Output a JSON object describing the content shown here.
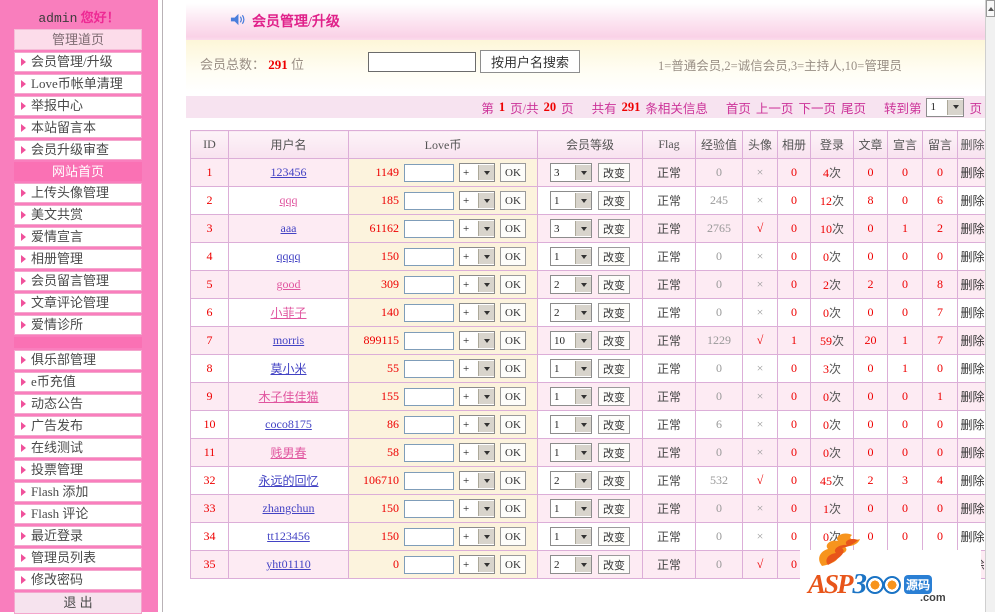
{
  "sidebar": {
    "greeting_user": "admin",
    "greeting_text": "您好！",
    "menu": [
      {
        "type": "header",
        "label": "管理道页"
      },
      {
        "type": "item",
        "label": "会员管理/升级"
      },
      {
        "type": "item",
        "label": "Love币帐单清理"
      },
      {
        "type": "item",
        "label": "举报中心"
      },
      {
        "type": "item",
        "label": "本站留言本"
      },
      {
        "type": "item",
        "label": "会员升级审查"
      },
      {
        "type": "header2",
        "label": "网站首页"
      },
      {
        "type": "item",
        "label": "上传头像管理"
      },
      {
        "type": "item",
        "label": "美文共赏"
      },
      {
        "type": "item",
        "label": "爱情宣言"
      },
      {
        "type": "item",
        "label": "相册管理"
      },
      {
        "type": "item",
        "label": "会员留言管理"
      },
      {
        "type": "item",
        "label": "文章评论管理"
      },
      {
        "type": "item",
        "label": "爱情诊所"
      },
      {
        "type": "blank",
        "label": ""
      },
      {
        "type": "item",
        "label": "俱乐部管理"
      },
      {
        "type": "item",
        "label": "e币充值"
      },
      {
        "type": "item",
        "label": "动态公告"
      },
      {
        "type": "item",
        "label": "广告发布"
      },
      {
        "type": "item",
        "label": "在线测试"
      },
      {
        "type": "item",
        "label": "投票管理"
      },
      {
        "type": "item",
        "label": "Flash 添加"
      },
      {
        "type": "item",
        "label": "Flash 评论"
      },
      {
        "type": "item",
        "label": "最近登录"
      },
      {
        "type": "item",
        "label": "管理员列表"
      },
      {
        "type": "item",
        "label": "修改密码"
      },
      {
        "type": "exit",
        "label": "退  出"
      }
    ]
  },
  "header": {
    "title": "会员管理/升级"
  },
  "search": {
    "total_label": "会员总数：",
    "total": "291",
    "unit": "位",
    "input_value": "",
    "button": "按用户名搜索",
    "legend": "1=普通会员,2=诚信会员,3=主持人,10=管理员"
  },
  "pagination": {
    "l1": "第",
    "page": "1",
    "l2": "页/共",
    "pages": "20",
    "l3": "页",
    "l4": "共有",
    "total": "291",
    "l5": "条相关信息",
    "first": "首页",
    "prev": "上一页",
    "next": "下一页",
    "last": "尾页",
    "l6": "转到第",
    "goto_page": "1",
    "l7": "页"
  },
  "table": {
    "headers": [
      "ID",
      "用户名",
      "Love币",
      "会员等级",
      "Flag",
      "经验值",
      "头像",
      "相册",
      "登录",
      "文章",
      "宣言",
      "留言",
      "删除"
    ],
    "plus_label": "+",
    "ok_label": "OK",
    "change_label": "改变",
    "delete_label": "删除",
    "login_suffix": "次",
    "rows": [
      {
        "id": "1",
        "user": "123456",
        "visited": false,
        "coin": "1149",
        "level": "3",
        "flag": "正常",
        "exp": "0",
        "avatar": "×",
        "album": "0",
        "login": "4",
        "articles": "0",
        "decl": "0",
        "msgs": "0"
      },
      {
        "id": "2",
        "user": "qqq",
        "visited": true,
        "coin": "185",
        "level": "1",
        "flag": "正常",
        "exp": "245",
        "avatar": "×",
        "album": "0",
        "login": "12",
        "articles": "8",
        "decl": "0",
        "msgs": "6"
      },
      {
        "id": "3",
        "user": "aaa",
        "visited": false,
        "coin": "61162",
        "level": "3",
        "flag": "正常",
        "exp": "2765",
        "avatar": "√",
        "album": "0",
        "login": "10",
        "articles": "0",
        "decl": "1",
        "msgs": "2"
      },
      {
        "id": "4",
        "user": "qqqq",
        "visited": false,
        "coin": "150",
        "level": "1",
        "flag": "正常",
        "exp": "0",
        "avatar": "×",
        "album": "0",
        "login": "0",
        "articles": "0",
        "decl": "0",
        "msgs": "0"
      },
      {
        "id": "5",
        "user": "good",
        "visited": true,
        "coin": "309",
        "level": "2",
        "flag": "正常",
        "exp": "0",
        "avatar": "×",
        "album": "0",
        "login": "2",
        "articles": "2",
        "decl": "0",
        "msgs": "8"
      },
      {
        "id": "6",
        "user": "小菲子",
        "visited": true,
        "coin": "140",
        "level": "2",
        "flag": "正常",
        "exp": "0",
        "avatar": "×",
        "album": "0",
        "login": "0",
        "articles": "0",
        "decl": "0",
        "msgs": "7"
      },
      {
        "id": "7",
        "user": "morris",
        "visited": false,
        "coin": "899115",
        "level": "10",
        "flag": "正常",
        "exp": "1229",
        "avatar": "√",
        "album": "1",
        "login": "59",
        "articles": "20",
        "decl": "1",
        "msgs": "7"
      },
      {
        "id": "8",
        "user": "莫小米",
        "visited": false,
        "coin": "55",
        "level": "1",
        "flag": "正常",
        "exp": "0",
        "avatar": "×",
        "album": "0",
        "login": "3",
        "articles": "0",
        "decl": "1",
        "msgs": "0"
      },
      {
        "id": "9",
        "user": "木子佳佳猫",
        "visited": true,
        "coin": "155",
        "level": "1",
        "flag": "正常",
        "exp": "0",
        "avatar": "×",
        "album": "0",
        "login": "0",
        "articles": "0",
        "decl": "0",
        "msgs": "1"
      },
      {
        "id": "10",
        "user": "coco8175",
        "visited": false,
        "coin": "86",
        "level": "1",
        "flag": "正常",
        "exp": "6",
        "avatar": "×",
        "album": "0",
        "login": "0",
        "articles": "0",
        "decl": "0",
        "msgs": "0"
      },
      {
        "id": "11",
        "user": "贱男春",
        "visited": true,
        "coin": "58",
        "level": "1",
        "flag": "正常",
        "exp": "0",
        "avatar": "×",
        "album": "0",
        "login": "0",
        "articles": "0",
        "decl": "0",
        "msgs": "0"
      },
      {
        "id": "32",
        "user": "永远的回忆",
        "visited": false,
        "coin": "106710",
        "level": "2",
        "flag": "正常",
        "exp": "532",
        "avatar": "√",
        "album": "0",
        "login": "45",
        "articles": "2",
        "decl": "3",
        "msgs": "4"
      },
      {
        "id": "33",
        "user": "zhangchun",
        "visited": false,
        "coin": "150",
        "level": "1",
        "flag": "正常",
        "exp": "0",
        "avatar": "×",
        "album": "0",
        "login": "1",
        "articles": "0",
        "decl": "0",
        "msgs": "0"
      },
      {
        "id": "34",
        "user": "tt123456",
        "visited": false,
        "coin": "150",
        "level": "1",
        "flag": "正常",
        "exp": "0",
        "avatar": "×",
        "album": "0",
        "login": "0",
        "articles": "0",
        "decl": "0",
        "msgs": "0"
      },
      {
        "id": "35",
        "user": "yht01110",
        "visited": false,
        "coin": "0",
        "level": "2",
        "flag": "正常",
        "exp": "0",
        "avatar": "√",
        "album": "0",
        "login": "",
        "articles": "",
        "decl": "",
        "msgs": ""
      }
    ]
  },
  "watermark": {
    "asp": "ASP",
    "three": "3",
    "com": ".com",
    "source": "源码"
  }
}
